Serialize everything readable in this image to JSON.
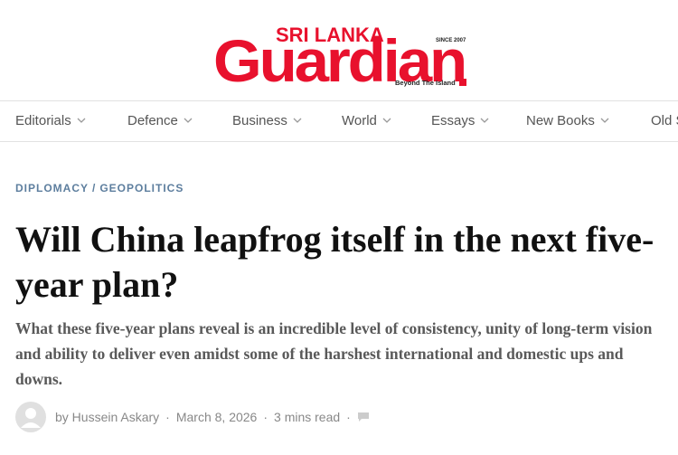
{
  "header": {
    "logo_top": "SRI LANKA",
    "logo_main": "Guardian",
    "since": "SINCE 2007",
    "tagline": "Beyond The Island"
  },
  "nav": [
    "Editorials",
    "Defence",
    "Business",
    "World",
    "Essays",
    "New Books",
    "Old S"
  ],
  "article": {
    "categories": [
      "DIPLOMACY",
      "GEOPOLITICS"
    ],
    "title": "Will China leapfrog itself in the next five-year plan?",
    "subtitle": "What these five-year plans reveal is an incredible level of consistency, unity of long-term vision and ability to deliver even amidst some of the harshest international and domestic ups and downs.",
    "author": "by Hussein Askary",
    "date": "March 8, 2026",
    "read_time": "3 mins read"
  }
}
